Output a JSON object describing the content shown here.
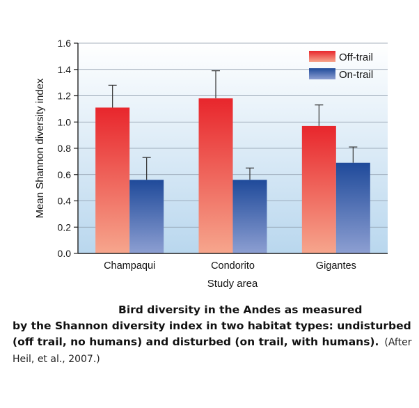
{
  "chart_data": {
    "type": "bar",
    "categories": [
      "Champaqui",
      "Condorito",
      "Gigantes"
    ],
    "series": [
      {
        "name": "Off-trail",
        "values": [
          1.11,
          1.18,
          0.97
        ],
        "errors": [
          0.17,
          0.21,
          0.16
        ],
        "color_top": "#e8262c",
        "color_bottom": "#f6a68d"
      },
      {
        "name": "On-trail",
        "values": [
          0.56,
          0.56,
          0.69
        ],
        "errors": [
          0.17,
          0.09,
          0.12
        ],
        "color_top": "#1f4a9a",
        "color_bottom": "#8d9fd2"
      }
    ],
    "xlabel": "Study area",
    "ylabel": "Mean Shannon diversity index",
    "ylim": [
      0,
      1.6
    ],
    "yticks": [
      "0.0",
      "0.2",
      "0.4",
      "0.6",
      "0.8",
      "1.0",
      "1.2",
      "1.4",
      "1.6"
    ],
    "grid": true,
    "legend_position": "top-right",
    "background_top": "#ffffff",
    "background_bottom": "#b9d7ee"
  },
  "caption": {
    "line1": "Bird diversity in the Andes as measured",
    "rest": "by the Shannon diversity index in two habitat types: undisturbed (off trail, no humans) and disturbed (on trail, with humans).",
    "source": "(After Heil, et al., 2007.)"
  }
}
